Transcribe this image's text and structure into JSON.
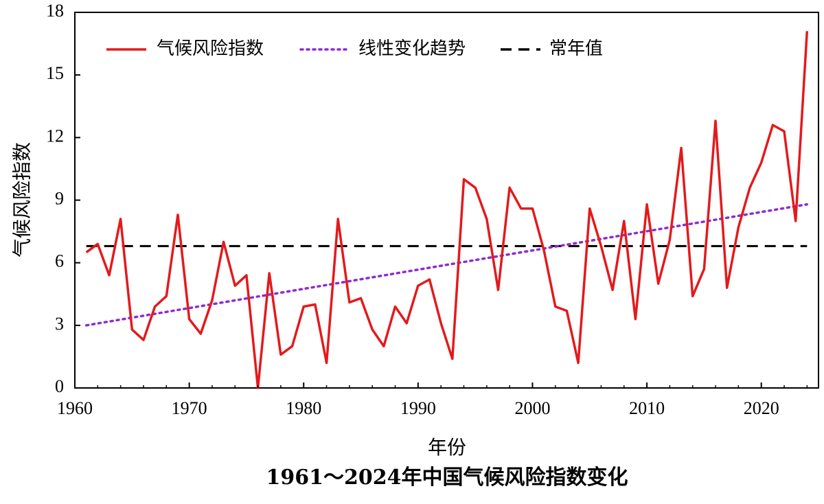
{
  "chart_data": {
    "type": "line",
    "title": "1961～2024年中国气候风险指数变化",
    "xlabel": "年份",
    "ylabel": "气候风险指数",
    "xlim": [
      1960,
      2025
    ],
    "ylim": [
      0,
      18
    ],
    "xticks": [
      1960,
      1970,
      1980,
      1990,
      2000,
      2010,
      2020
    ],
    "yticks": [
      0,
      3,
      6,
      9,
      12,
      15,
      18
    ],
    "legend_position": "top-left",
    "grid": false,
    "x": [
      1961,
      1962,
      1963,
      1964,
      1965,
      1966,
      1967,
      1968,
      1969,
      1970,
      1971,
      1972,
      1973,
      1974,
      1975,
      1976,
      1977,
      1978,
      1979,
      1980,
      1981,
      1982,
      1983,
      1984,
      1985,
      1986,
      1987,
      1988,
      1989,
      1990,
      1991,
      1992,
      1993,
      1994,
      1995,
      1996,
      1997,
      1998,
      1999,
      2000,
      2001,
      2002,
      2003,
      2004,
      2005,
      2006,
      2007,
      2008,
      2009,
      2010,
      2011,
      2012,
      2013,
      2014,
      2015,
      2016,
      2017,
      2018,
      2019,
      2020,
      2021,
      2022,
      2023,
      2024
    ],
    "series": [
      {
        "name": "气候风险指数",
        "style": "solid",
        "color": "#e31a1c",
        "values": [
          6.5,
          6.9,
          5.4,
          8.1,
          2.8,
          2.3,
          3.9,
          4.4,
          8.3,
          3.3,
          2.6,
          4.2,
          7.0,
          4.9,
          5.4,
          0.0,
          5.5,
          1.6,
          2.0,
          3.9,
          4.0,
          1.2,
          8.1,
          4.1,
          4.3,
          2.8,
          2.0,
          3.9,
          3.1,
          4.9,
          5.2,
          3.1,
          1.4,
          10.0,
          9.6,
          8.1,
          4.7,
          9.6,
          8.6,
          8.6,
          6.6,
          3.9,
          3.7,
          1.2,
          8.6,
          6.8,
          4.7,
          8.0,
          3.3,
          8.8,
          5.0,
          7.1,
          11.5,
          4.4,
          5.7,
          12.8,
          4.8,
          7.7,
          9.6,
          10.8,
          12.6,
          12.3,
          8.0,
          17.1
        ]
      },
      {
        "name": "线性变化趋势",
        "style": "dotted",
        "color": "#8e2ccf",
        "values": [
          3.0,
          8.8
        ],
        "x": [
          1961,
          2024
        ]
      },
      {
        "name": "常年值",
        "style": "dashed",
        "color": "#000000",
        "values": [
          6.8,
          6.8
        ],
        "x": [
          1961,
          2024
        ]
      }
    ]
  }
}
